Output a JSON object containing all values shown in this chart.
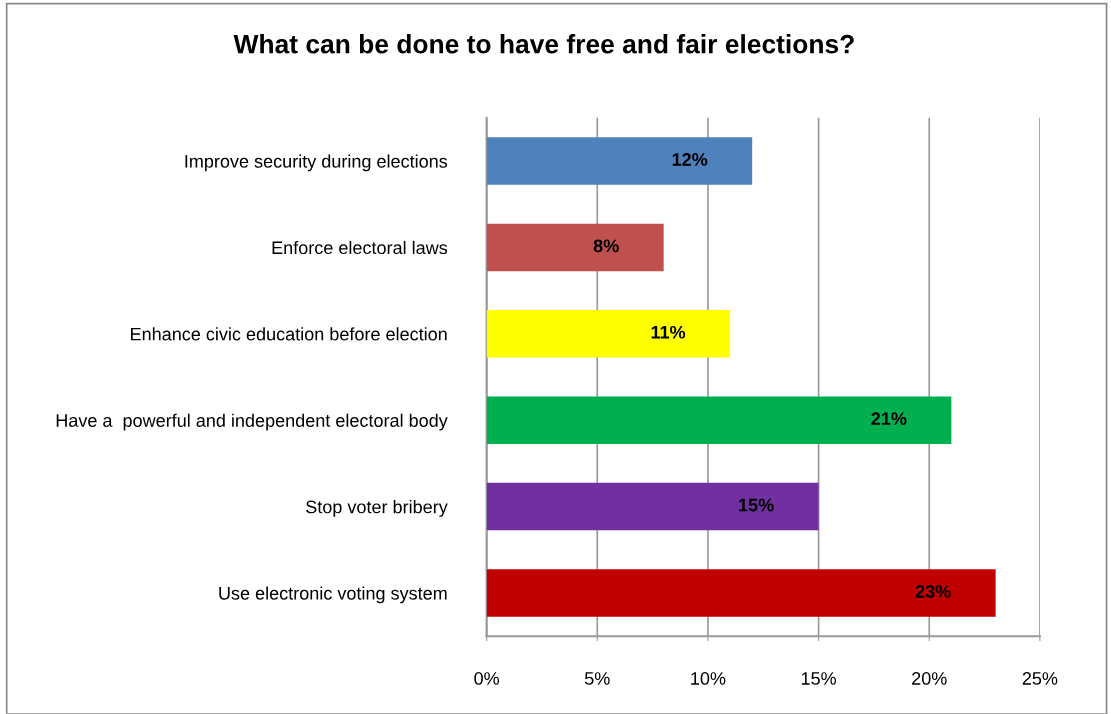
{
  "chart_data": {
    "type": "bar",
    "orientation": "horizontal",
    "title": "What can be done to have free and fair elections?",
    "categories": [
      "Improve security during elections",
      "Enforce electoral laws",
      "Enhance civic education before election",
      "Have a  powerful and independent electoral body",
      "Stop voter bribery",
      "Use electronic voting system"
    ],
    "values": [
      12,
      8,
      11,
      21,
      15,
      23
    ],
    "colors": [
      "#4f81bd",
      "#c0504d",
      "#ffff00",
      "#00b050",
      "#7030a0",
      "#c00000"
    ],
    "value_labels": [
      "12%",
      "8%",
      "11%",
      "21%",
      "15%",
      "23%"
    ],
    "xlim": [
      0,
      25
    ],
    "xticks": [
      {
        "value": 0,
        "label": "0%"
      },
      {
        "value": 5,
        "label": "5%"
      },
      {
        "value": 10,
        "label": "10%"
      },
      {
        "value": 15,
        "label": "15%"
      },
      {
        "value": 20,
        "label": "20%"
      },
      {
        "value": 25,
        "label": "25%"
      }
    ],
    "grid": "x",
    "legend": false
  }
}
